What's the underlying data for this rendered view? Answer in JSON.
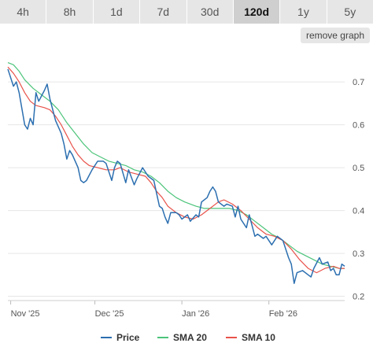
{
  "toolbar": {
    "ranges": [
      "4h",
      "8h",
      "1d",
      "7d",
      "30d",
      "120d",
      "1y",
      "5y"
    ],
    "active_range": "120d",
    "remove_graph_label": "remove graph"
  },
  "colors": {
    "price": "#2c6fb0",
    "sma20": "#4cc47a",
    "sma10": "#e8524a",
    "grid": "#e6e6e6",
    "tab_bg": "#e6e6e6",
    "tab_active_bg": "#cfcfcf"
  },
  "chart_data": {
    "type": "line",
    "x_type": "date",
    "x_range": [
      "2025-10-31",
      "2026-02-28"
    ],
    "ylim": [
      0.19,
      0.77
    ],
    "y_ticks": [
      0.2,
      0.3,
      0.4,
      0.5,
      0.6,
      0.7
    ],
    "y_tick_labels": [
      "0.2",
      "0.3",
      "0.4",
      "0.5",
      "0.6",
      "0.7"
    ],
    "x_ticks": [
      {
        "date": "2025-11-01",
        "label": "Nov '25"
      },
      {
        "date": "2025-12-01",
        "label": "Dec '25"
      },
      {
        "date": "2026-01-01",
        "label": "Jan '26"
      },
      {
        "date": "2026-02-01",
        "label": "Feb '26"
      }
    ],
    "grid": true,
    "legend_position": "bottom",
    "series": [
      {
        "name": "Price",
        "color": "#2c6fb0",
        "points": [
          [
            "2025-10-31",
            0.73
          ],
          [
            "2025-11-02",
            0.69
          ],
          [
            "2025-11-03",
            0.7
          ],
          [
            "2025-11-04",
            0.675
          ],
          [
            "2025-11-06",
            0.6
          ],
          [
            "2025-11-07",
            0.59
          ],
          [
            "2025-11-08",
            0.615
          ],
          [
            "2025-11-09",
            0.6
          ],
          [
            "2025-11-10",
            0.675
          ],
          [
            "2025-11-11",
            0.655
          ],
          [
            "2025-11-13",
            0.68
          ],
          [
            "2025-11-14",
            0.695
          ],
          [
            "2025-11-15",
            0.66
          ],
          [
            "2025-11-17",
            0.61
          ],
          [
            "2025-11-19",
            0.58
          ],
          [
            "2025-11-20",
            0.555
          ],
          [
            "2025-11-21",
            0.52
          ],
          [
            "2025-11-22",
            0.54
          ],
          [
            "2025-11-23",
            0.53
          ],
          [
            "2025-11-25",
            0.5
          ],
          [
            "2025-11-26",
            0.47
          ],
          [
            "2025-11-27",
            0.465
          ],
          [
            "2025-11-28",
            0.47
          ],
          [
            "2025-11-30",
            0.495
          ],
          [
            "2025-12-02",
            0.515
          ],
          [
            "2025-12-04",
            0.515
          ],
          [
            "2025-12-05",
            0.51
          ],
          [
            "2025-12-07",
            0.47
          ],
          [
            "2025-12-08",
            0.5
          ],
          [
            "2025-12-09",
            0.515
          ],
          [
            "2025-12-10",
            0.51
          ],
          [
            "2025-12-12",
            0.465
          ],
          [
            "2025-12-13",
            0.495
          ],
          [
            "2025-12-15",
            0.46
          ],
          [
            "2025-12-16",
            0.475
          ],
          [
            "2025-12-18",
            0.5
          ],
          [
            "2025-12-20",
            0.48
          ],
          [
            "2025-12-22",
            0.47
          ],
          [
            "2025-12-23",
            0.44
          ],
          [
            "2025-12-24",
            0.41
          ],
          [
            "2025-12-25",
            0.405
          ],
          [
            "2025-12-26",
            0.385
          ],
          [
            "2025-12-27",
            0.37
          ],
          [
            "2025-12-28",
            0.395
          ],
          [
            "2025-12-30",
            0.395
          ],
          [
            "2025-12-31",
            0.39
          ],
          [
            "2026-01-01",
            0.38
          ],
          [
            "2026-01-03",
            0.39
          ],
          [
            "2026-01-04",
            0.375
          ],
          [
            "2026-01-06",
            0.39
          ],
          [
            "2026-01-07",
            0.385
          ],
          [
            "2026-01-08",
            0.42
          ],
          [
            "2026-01-10",
            0.43
          ],
          [
            "2026-01-11",
            0.445
          ],
          [
            "2026-01-12",
            0.455
          ],
          [
            "2026-01-13",
            0.445
          ],
          [
            "2026-01-14",
            0.42
          ],
          [
            "2026-01-16",
            0.41
          ],
          [
            "2026-01-17",
            0.415
          ],
          [
            "2026-01-19",
            0.41
          ],
          [
            "2026-01-20",
            0.385
          ],
          [
            "2026-01-21",
            0.41
          ],
          [
            "2026-01-22",
            0.38
          ],
          [
            "2026-01-24",
            0.36
          ],
          [
            "2026-01-25",
            0.39
          ],
          [
            "2026-01-26",
            0.365
          ],
          [
            "2026-01-27",
            0.34
          ],
          [
            "2026-01-28",
            0.345
          ],
          [
            "2026-01-30",
            0.335
          ],
          [
            "2026-01-31",
            0.34
          ],
          [
            "2026-02-02",
            0.32
          ],
          [
            "2026-02-04",
            0.34
          ],
          [
            "2026-02-06",
            0.33
          ],
          [
            "2026-02-07",
            0.31
          ],
          [
            "2026-02-08",
            0.29
          ],
          [
            "2026-02-09",
            0.275
          ],
          [
            "2026-02-10",
            0.23
          ],
          [
            "2026-02-11",
            0.255
          ],
          [
            "2026-02-13",
            0.26
          ],
          [
            "2026-02-15",
            0.25
          ],
          [
            "2026-02-16",
            0.245
          ],
          [
            "2026-02-17",
            0.265
          ],
          [
            "2026-02-19",
            0.29
          ],
          [
            "2026-02-20",
            0.275
          ],
          [
            "2026-02-22",
            0.28
          ],
          [
            "2026-02-23",
            0.26
          ],
          [
            "2026-02-24",
            0.265
          ],
          [
            "2026-02-25",
            0.25
          ],
          [
            "2026-02-26",
            0.25
          ],
          [
            "2026-02-27",
            0.275
          ],
          [
            "2026-02-28",
            0.27
          ]
        ]
      },
      {
        "name": "SMA 20",
        "color": "#4cc47a",
        "points": [
          [
            "2025-10-31",
            0.745
          ],
          [
            "2025-11-02",
            0.74
          ],
          [
            "2025-11-04",
            0.725
          ],
          [
            "2025-11-06",
            0.705
          ],
          [
            "2025-11-09",
            0.685
          ],
          [
            "2025-11-12",
            0.67
          ],
          [
            "2025-11-15",
            0.655
          ],
          [
            "2025-11-18",
            0.635
          ],
          [
            "2025-11-21",
            0.605
          ],
          [
            "2025-11-24",
            0.58
          ],
          [
            "2025-11-27",
            0.555
          ],
          [
            "2025-11-30",
            0.535
          ],
          [
            "2025-12-03",
            0.525
          ],
          [
            "2025-12-06",
            0.515
          ],
          [
            "2025-12-09",
            0.51
          ],
          [
            "2025-12-12",
            0.505
          ],
          [
            "2025-12-15",
            0.495
          ],
          [
            "2025-12-18",
            0.49
          ],
          [
            "2025-12-21",
            0.48
          ],
          [
            "2025-12-24",
            0.465
          ],
          [
            "2025-12-27",
            0.445
          ],
          [
            "2025-12-30",
            0.43
          ],
          [
            "2026-01-02",
            0.42
          ],
          [
            "2026-01-06",
            0.41
          ],
          [
            "2026-01-09",
            0.405
          ],
          [
            "2026-01-12",
            0.405
          ],
          [
            "2026-01-15",
            0.405
          ],
          [
            "2026-01-18",
            0.405
          ],
          [
            "2026-01-21",
            0.4
          ],
          [
            "2026-01-24",
            0.39
          ],
          [
            "2026-01-27",
            0.375
          ],
          [
            "2026-01-30",
            0.36
          ],
          [
            "2026-02-02",
            0.345
          ],
          [
            "2026-02-05",
            0.335
          ],
          [
            "2026-02-08",
            0.32
          ],
          [
            "2026-02-11",
            0.305
          ],
          [
            "2026-02-14",
            0.295
          ],
          [
            "2026-02-17",
            0.285
          ],
          [
            "2026-02-20",
            0.275
          ],
          [
            "2026-02-23",
            0.27
          ],
          [
            "2026-02-26",
            0.265
          ],
          [
            "2026-02-28",
            0.265
          ]
        ]
      },
      {
        "name": "SMA 10",
        "color": "#e8524a",
        "points": [
          [
            "2025-10-31",
            0.735
          ],
          [
            "2025-11-02",
            0.72
          ],
          [
            "2025-11-04",
            0.7
          ],
          [
            "2025-11-06",
            0.675
          ],
          [
            "2025-11-08",
            0.655
          ],
          [
            "2025-11-10",
            0.645
          ],
          [
            "2025-11-13",
            0.64
          ],
          [
            "2025-11-15",
            0.635
          ],
          [
            "2025-11-17",
            0.62
          ],
          [
            "2025-11-19",
            0.6
          ],
          [
            "2025-11-21",
            0.575
          ],
          [
            "2025-11-23",
            0.55
          ],
          [
            "2025-11-25",
            0.53
          ],
          [
            "2025-11-27",
            0.515
          ],
          [
            "2025-11-29",
            0.505
          ],
          [
            "2025-12-02",
            0.5
          ],
          [
            "2025-12-05",
            0.495
          ],
          [
            "2025-12-08",
            0.495
          ],
          [
            "2025-12-10",
            0.5
          ],
          [
            "2025-12-13",
            0.49
          ],
          [
            "2025-12-16",
            0.485
          ],
          [
            "2025-12-19",
            0.48
          ],
          [
            "2025-12-21",
            0.465
          ],
          [
            "2025-12-23",
            0.445
          ],
          [
            "2025-12-25",
            0.43
          ],
          [
            "2025-12-27",
            0.41
          ],
          [
            "2025-12-30",
            0.395
          ],
          [
            "2026-01-02",
            0.385
          ],
          [
            "2026-01-05",
            0.38
          ],
          [
            "2026-01-08",
            0.39
          ],
          [
            "2026-01-11",
            0.405
          ],
          [
            "2026-01-14",
            0.42
          ],
          [
            "2026-01-16",
            0.425
          ],
          [
            "2026-01-19",
            0.415
          ],
          [
            "2026-01-22",
            0.4
          ],
          [
            "2026-01-25",
            0.38
          ],
          [
            "2026-01-28",
            0.36
          ],
          [
            "2026-01-31",
            0.345
          ],
          [
            "2026-02-03",
            0.34
          ],
          [
            "2026-02-06",
            0.33
          ],
          [
            "2026-02-09",
            0.31
          ],
          [
            "2026-02-12",
            0.285
          ],
          [
            "2026-02-15",
            0.265
          ],
          [
            "2026-02-18",
            0.255
          ],
          [
            "2026-02-21",
            0.265
          ],
          [
            "2026-02-24",
            0.27
          ],
          [
            "2026-02-26",
            0.265
          ],
          [
            "2026-02-28",
            0.265
          ]
        ]
      }
    ]
  }
}
